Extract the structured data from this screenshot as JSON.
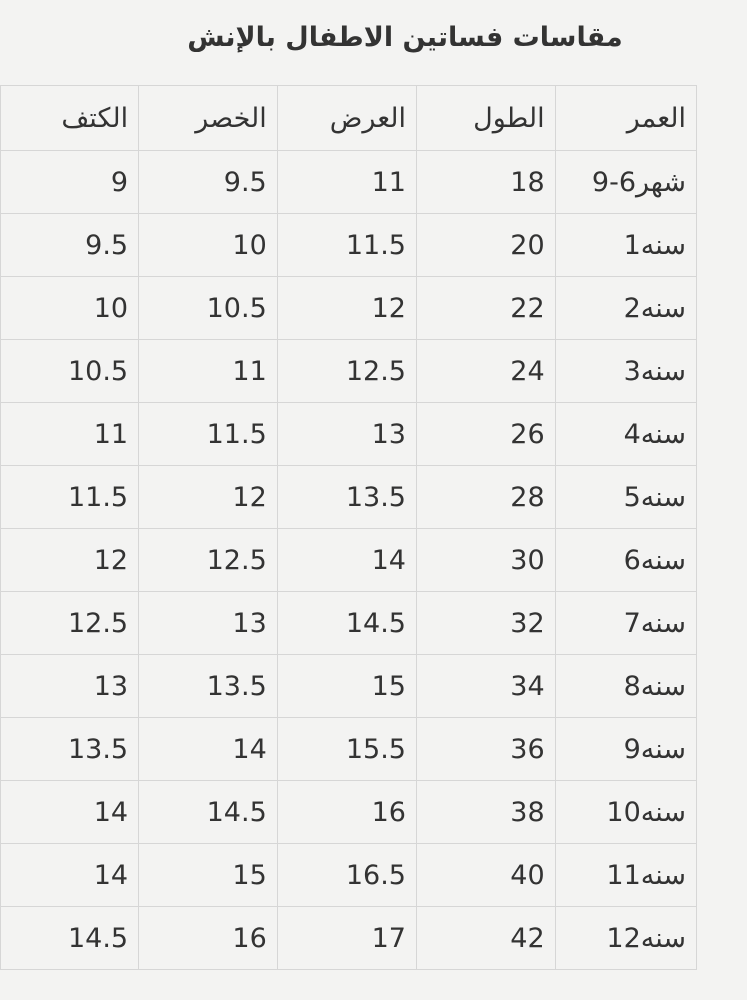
{
  "title": "مقاسات فساتين الاطفال بالإنش",
  "headers": [
    "العمر",
    "الطول",
    "العرض",
    "الخصر",
    "الكتف"
  ],
  "rows": [
    [
      "9-6شهر",
      "18",
      "11",
      "9.5",
      "9"
    ],
    [
      "1سنه",
      "20",
      "11.5",
      "10",
      "9.5"
    ],
    [
      "2سنه",
      "22",
      "12",
      "10.5",
      "10"
    ],
    [
      "3سنه",
      "24",
      "12.5",
      "11",
      "10.5"
    ],
    [
      "4سنه",
      "26",
      "13",
      "11.5",
      "11"
    ],
    [
      "5سنه",
      "28",
      "13.5",
      "12",
      "11.5"
    ],
    [
      "6سنه",
      "30",
      "14",
      "12.5",
      "12"
    ],
    [
      "7سنه",
      "32",
      "14.5",
      "13",
      "12.5"
    ],
    [
      "8سنه",
      "34",
      "15",
      "13.5",
      "13"
    ],
    [
      "9سنه",
      "36",
      "15.5",
      "14",
      "13.5"
    ],
    [
      "10سنه",
      "38",
      "16",
      "14.5",
      "14"
    ],
    [
      "11سنه",
      "40",
      "16.5",
      "15",
      "14"
    ],
    [
      "12سنه",
      "42",
      "17",
      "16",
      "14.5"
    ]
  ]
}
